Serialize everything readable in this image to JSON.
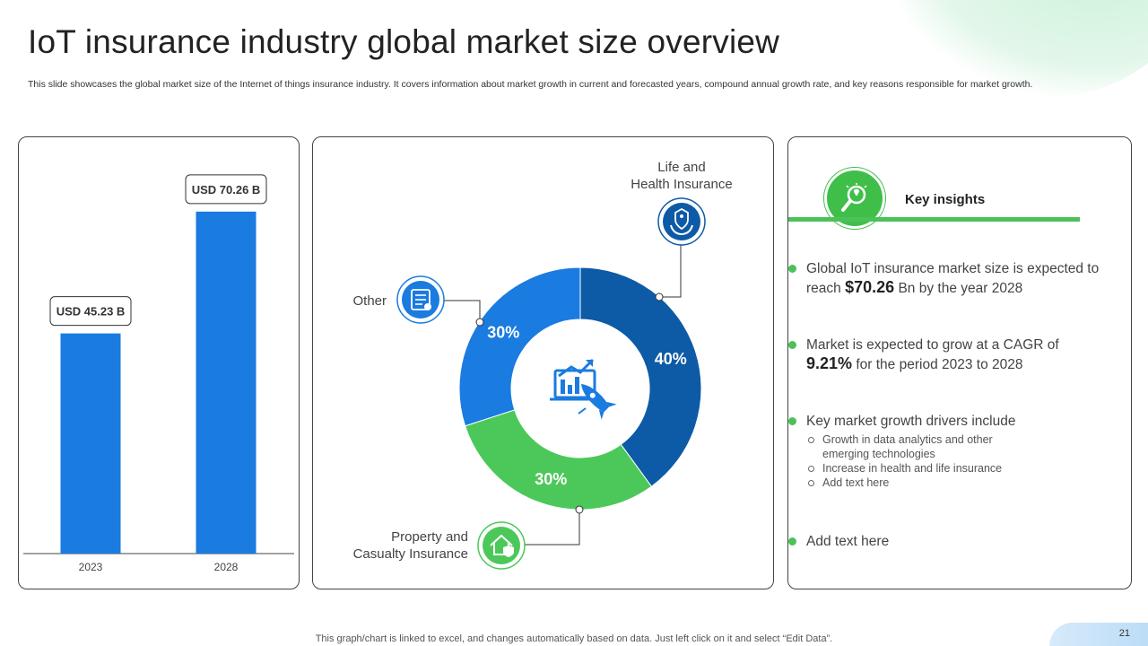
{
  "title": "IoT insurance industry global market size overview",
  "subtitle": "This slide showcases the global market size of the Internet of things insurance industry. It covers information about market growth in current and forecasted years, compound annual growth rate, and key reasons responsible for market growth.",
  "chart_data": [
    {
      "type": "bar",
      "categories": [
        "2023",
        "2028"
      ],
      "values": [
        45.23,
        70.26
      ],
      "data_labels": [
        "USD 45.23 B",
        "USD 70.26 B"
      ],
      "title": "",
      "xlabel": "",
      "ylabel": "",
      "ylim": [
        0,
        80
      ],
      "grid": false,
      "color": "#1a7be0"
    },
    {
      "type": "pie",
      "donut": true,
      "slices": [
        {
          "label_line1": "Life and",
          "label_line2": "Health Insurance",
          "value": 40,
          "value_label": "40%",
          "color": "#0d5aa7"
        },
        {
          "label_line1": "Property and",
          "label_line2": "Casualty Insurance",
          "value": 30,
          "value_label": "30%",
          "color": "#4cc85a"
        },
        {
          "label_line1": "Other",
          "label_line2": "",
          "value": 30,
          "value_label": "30%",
          "color": "#1a7be0"
        }
      ]
    }
  ],
  "icons": {
    "center": "analytics-rocket-icon",
    "life": "family-protection-icon",
    "property": "house-shield-icon",
    "other": "document-list-icon",
    "insights": "lightbulb-magnifier-icon"
  },
  "insights": {
    "title": "Key insights",
    "item1_pre": "Global IoT insurance market size is expected to reach ",
    "item1_value": "$70.26",
    "item1_post": " Bn by the year 2028",
    "item2_pre": "Market is expected to grow at a CAGR of",
    "item2_value": "9.21%",
    "item2_post": " for the period 2023 to 2028",
    "item3": "Key market growth drivers include",
    "item3_sub": [
      "Growth in data analytics and other emerging technologies",
      "Increase in health and life insurance",
      "Add text here"
    ],
    "item4": "Add text here"
  },
  "colors": {
    "accent_green": "#4cc15a",
    "bar_blue": "#1a7be0",
    "dark_blue": "#0d5aa7"
  },
  "footer": "This graph/chart is linked to excel, and changes automatically based on data. Just left click on it and select “Edit Data”.",
  "page_number": "21"
}
